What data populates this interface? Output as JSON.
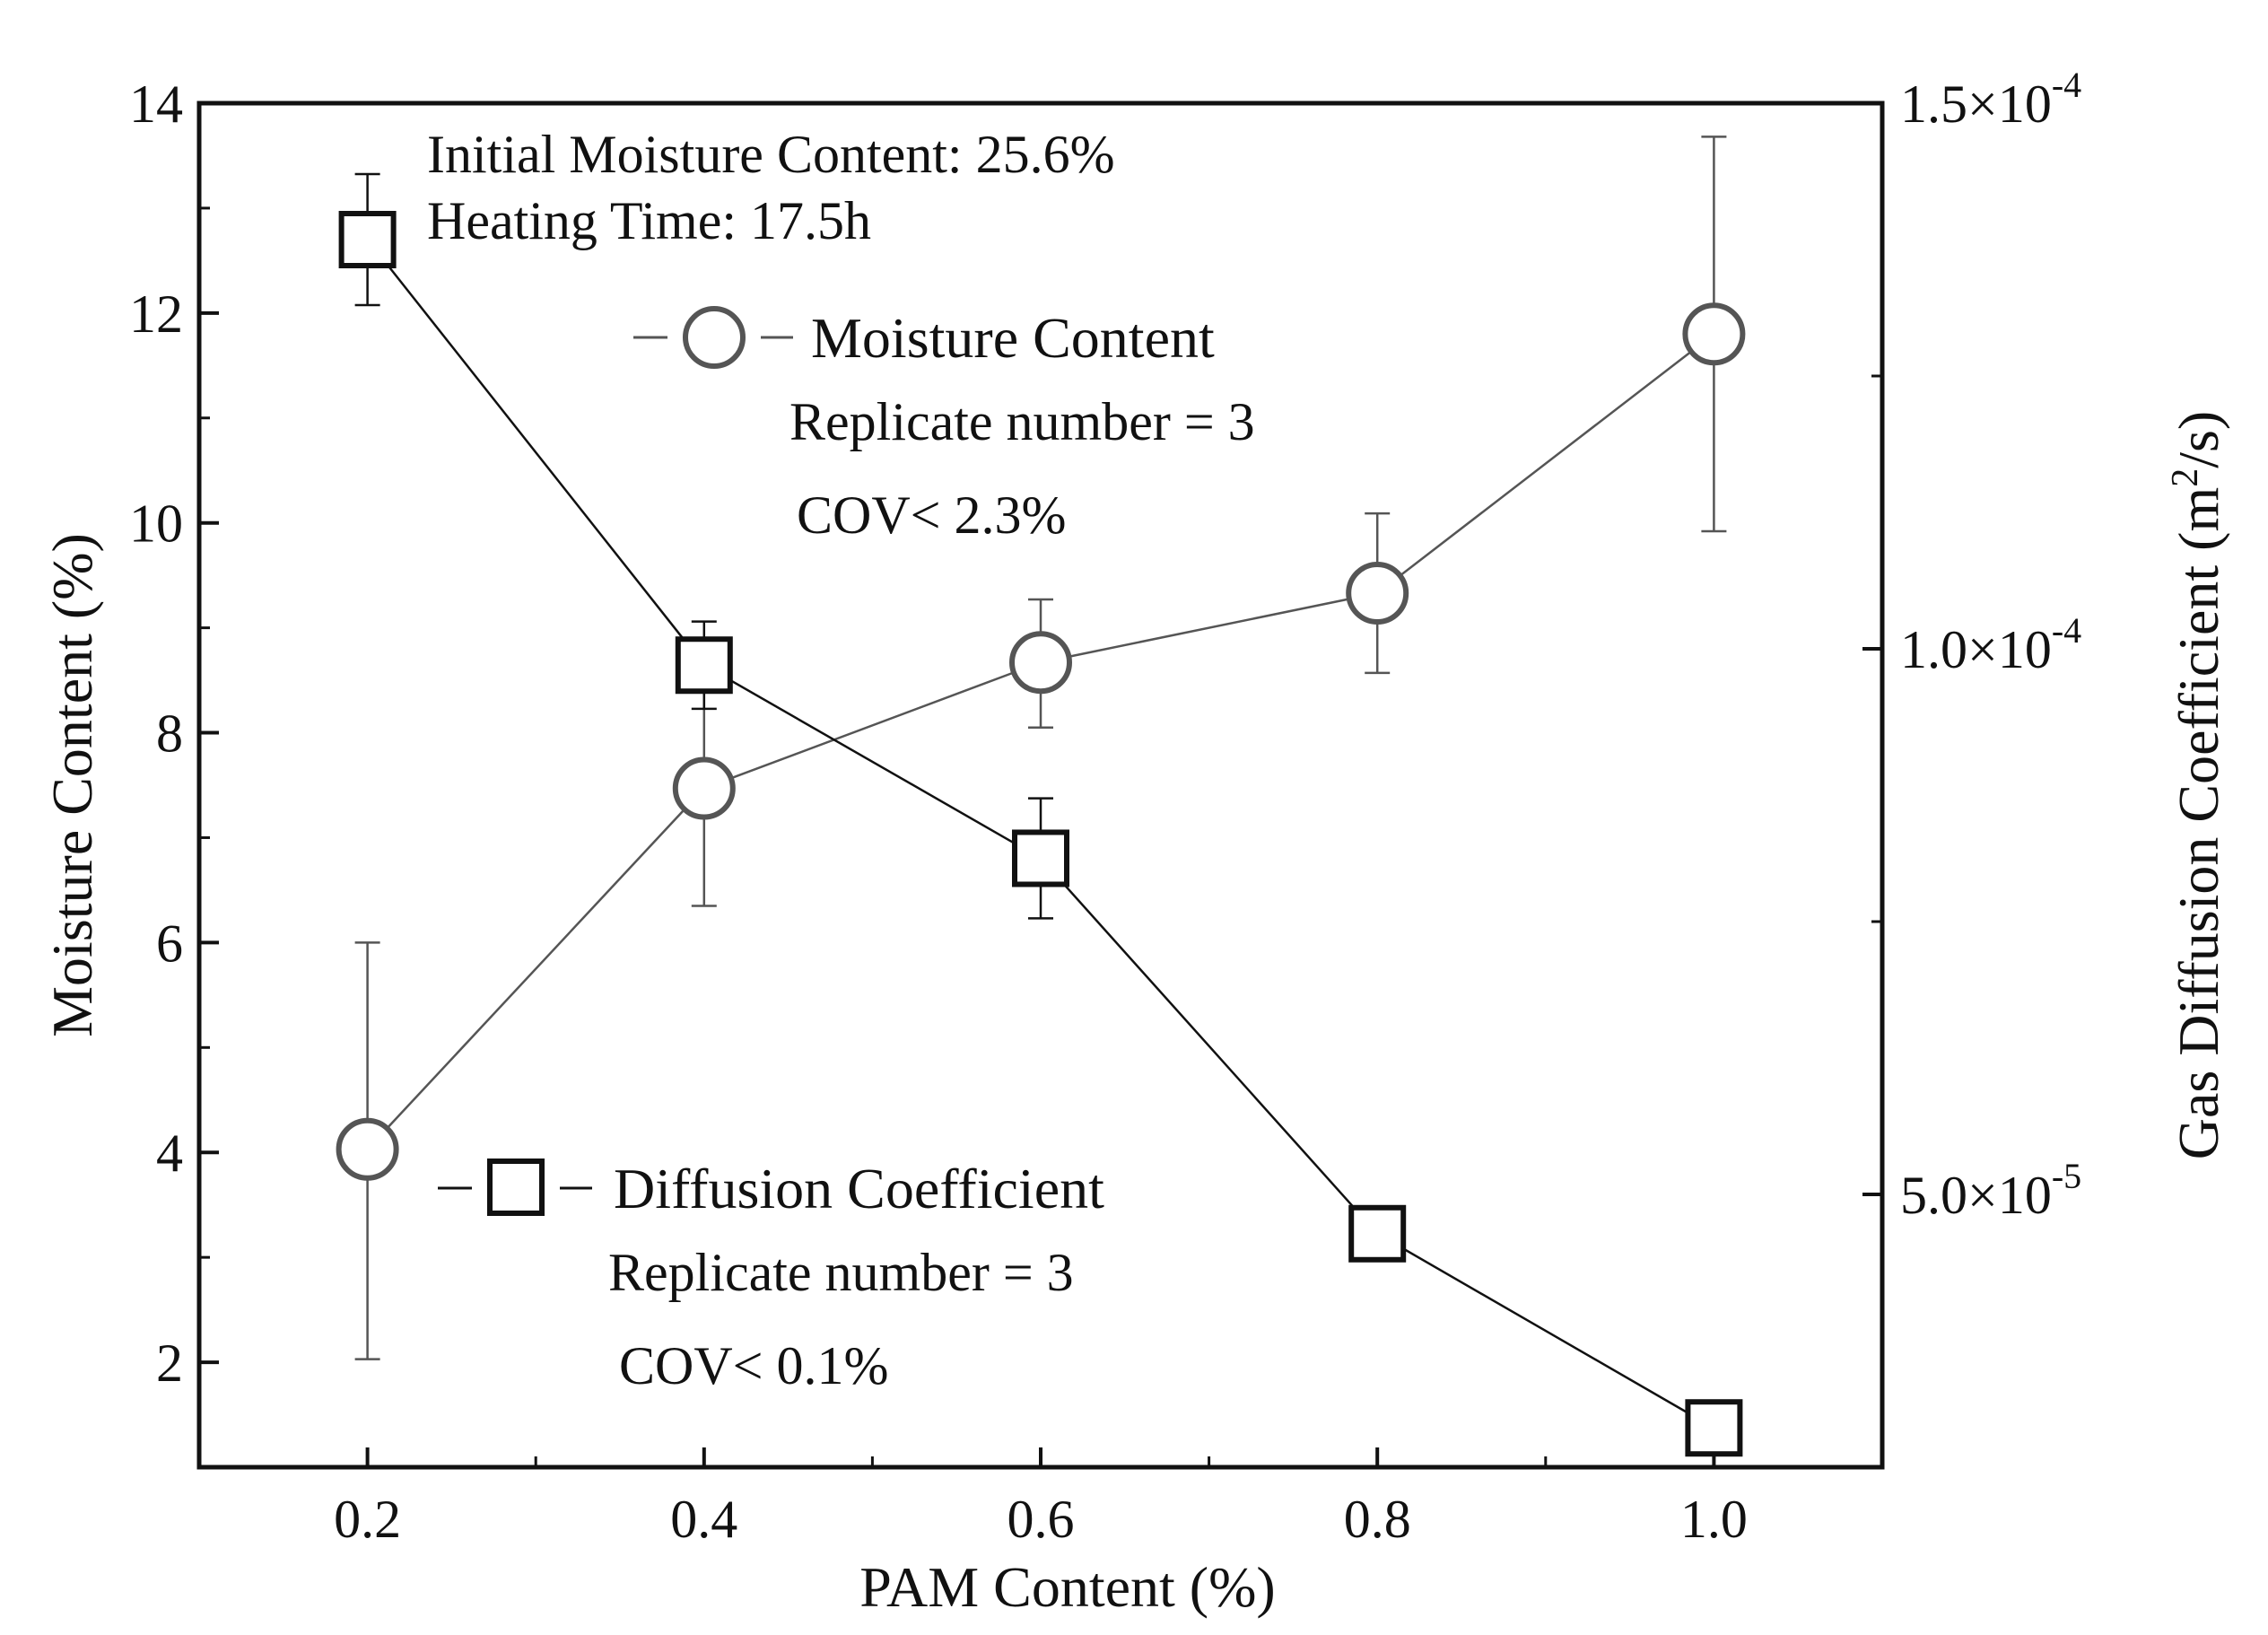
{
  "chart_data": {
    "type": "line",
    "title": "",
    "xlabel": "PAM Content (%)",
    "ylabel_left": "Moisture Content (%)",
    "ylabel_right_prefix": "Gas Diffusion Coefficient (m",
    "ylabel_right_sup": "2",
    "ylabel_right_suffix": "/s)",
    "xlim": [
      0.1,
      1.1
    ],
    "ylim_left": [
      1,
      14
    ],
    "ylim_right": [
      2.5e-05,
      0.00015
    ],
    "x_ticks": [
      0.2,
      0.4,
      0.6,
      0.8,
      1.0
    ],
    "x_tick_labels": [
      "0.2",
      "0.4",
      "0.6",
      "0.8",
      "1.0"
    ],
    "y_left_ticks": [
      2,
      4,
      6,
      8,
      10,
      12,
      14
    ],
    "y_left_tick_labels": [
      "2",
      "4",
      "6",
      "8",
      "10",
      "12",
      "14"
    ],
    "y_right_ticks": [
      5e-05,
      0.0001,
      0.00015
    ],
    "y_right_tick_labels": [
      {
        "mantissa": "5.0×10",
        "exp": "-5"
      },
      {
        "mantissa": "1.0×10",
        "exp": "-4"
      },
      {
        "mantissa": "1.5×10",
        "exp": "-4"
      }
    ],
    "series": [
      {
        "name": "Moisture Content",
        "axis": "left",
        "marker": "circle",
        "color": "#555555",
        "x": [
          0.2,
          0.4,
          0.6,
          0.8,
          1.0
        ],
        "y": [
          4.03,
          7.47,
          8.67,
          9.33,
          11.8
        ],
        "err_low": [
          2.03,
          6.35,
          8.05,
          8.57,
          9.92
        ],
        "err_high": [
          6.0,
          8.59,
          9.27,
          10.09,
          13.68
        ]
      },
      {
        "name": "Diffusion Coefficient",
        "axis": "right",
        "marker": "square",
        "color": "#111111",
        "x": [
          0.2,
          0.4,
          0.6,
          0.8,
          1.0
        ],
        "y": [
          0.0001375,
          9.85e-05,
          8.08e-05,
          4.64e-05,
          2.86e-05
        ],
        "err_low": [
          0.0001315,
          9.45e-05,
          7.53e-05,
          4.4e-05,
          2.62e-05
        ],
        "err_high": [
          0.0001435,
          0.0001025,
          8.63e-05,
          4.88e-05,
          3.1e-05
        ]
      }
    ],
    "annotations": {
      "initial_moisture": "Initial Moisture Content: 25.6%",
      "heating_time": "Heating Time: 17.5h",
      "moisture_legend": "Moisture Content",
      "moisture_replicate": "Replicate number = 3",
      "moisture_cov": "COV< 2.3%",
      "diffusion_legend": "Diffusion Coefficient",
      "diffusion_replicate": "Replicate number = 3",
      "diffusion_cov": "COV< 0.1%"
    }
  }
}
